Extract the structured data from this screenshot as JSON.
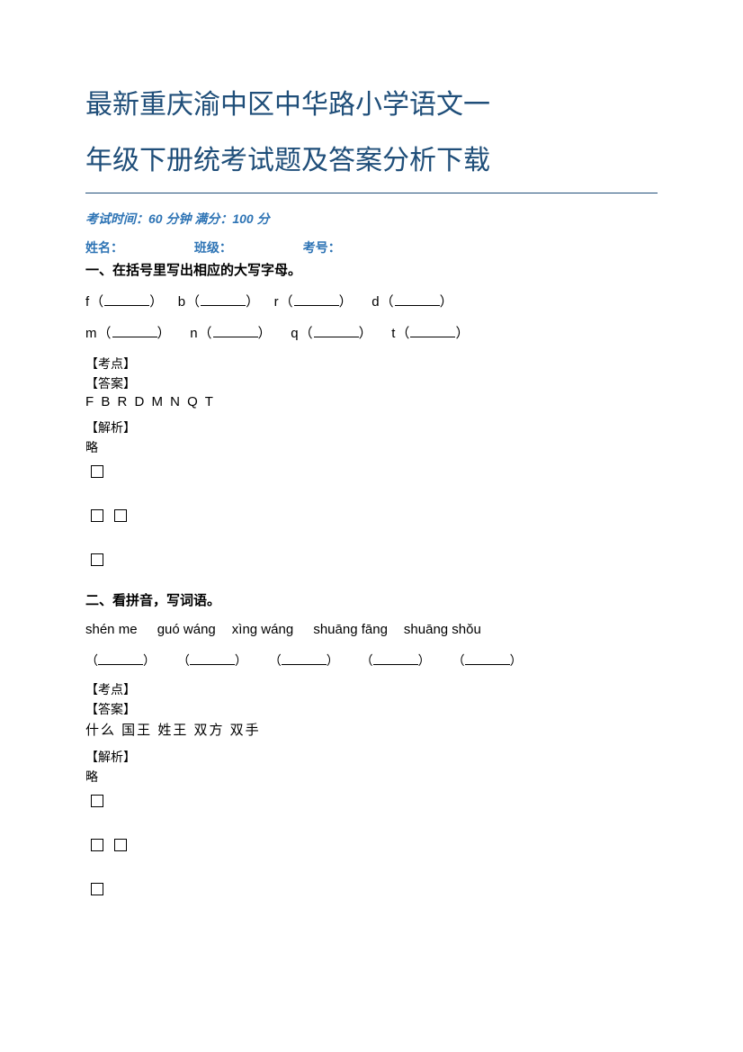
{
  "title_line1": "最新重庆渝中区中华路小学语文一",
  "title_line2": "年级下册统考试题及答案分析下载",
  "exam_info": "考试时间：60 分钟  满分：100 分",
  "student": {
    "name": "姓名：",
    "class": "班级：",
    "id": "考号："
  },
  "q1": {
    "heading": "一、在括号里写出相应的大写字母。",
    "row1": {
      "a": "f",
      "b": "b",
      "c": "r",
      "d": "d"
    },
    "row2": {
      "a": "m",
      "b": "n",
      "c": "q",
      "d": "t"
    },
    "kaodian": "【考点】",
    "daan": "【答案】",
    "answer": "F    B    R    D    M    N    Q    T",
    "jiexi": "【解析】",
    "lue": "略"
  },
  "q2": {
    "heading": "二、看拼音，写词语。",
    "pinyin": {
      "a": "shén me",
      "b": "guó   wáng",
      "c": "xìng wáng",
      "d": "shuāng fāng",
      "e": "shuāng shǒu"
    },
    "kaodian": "【考点】",
    "daan": "【答案】",
    "answer": "什么    国王    姓王    双方    双手",
    "jiexi": "【解析】",
    "lue": "略"
  }
}
